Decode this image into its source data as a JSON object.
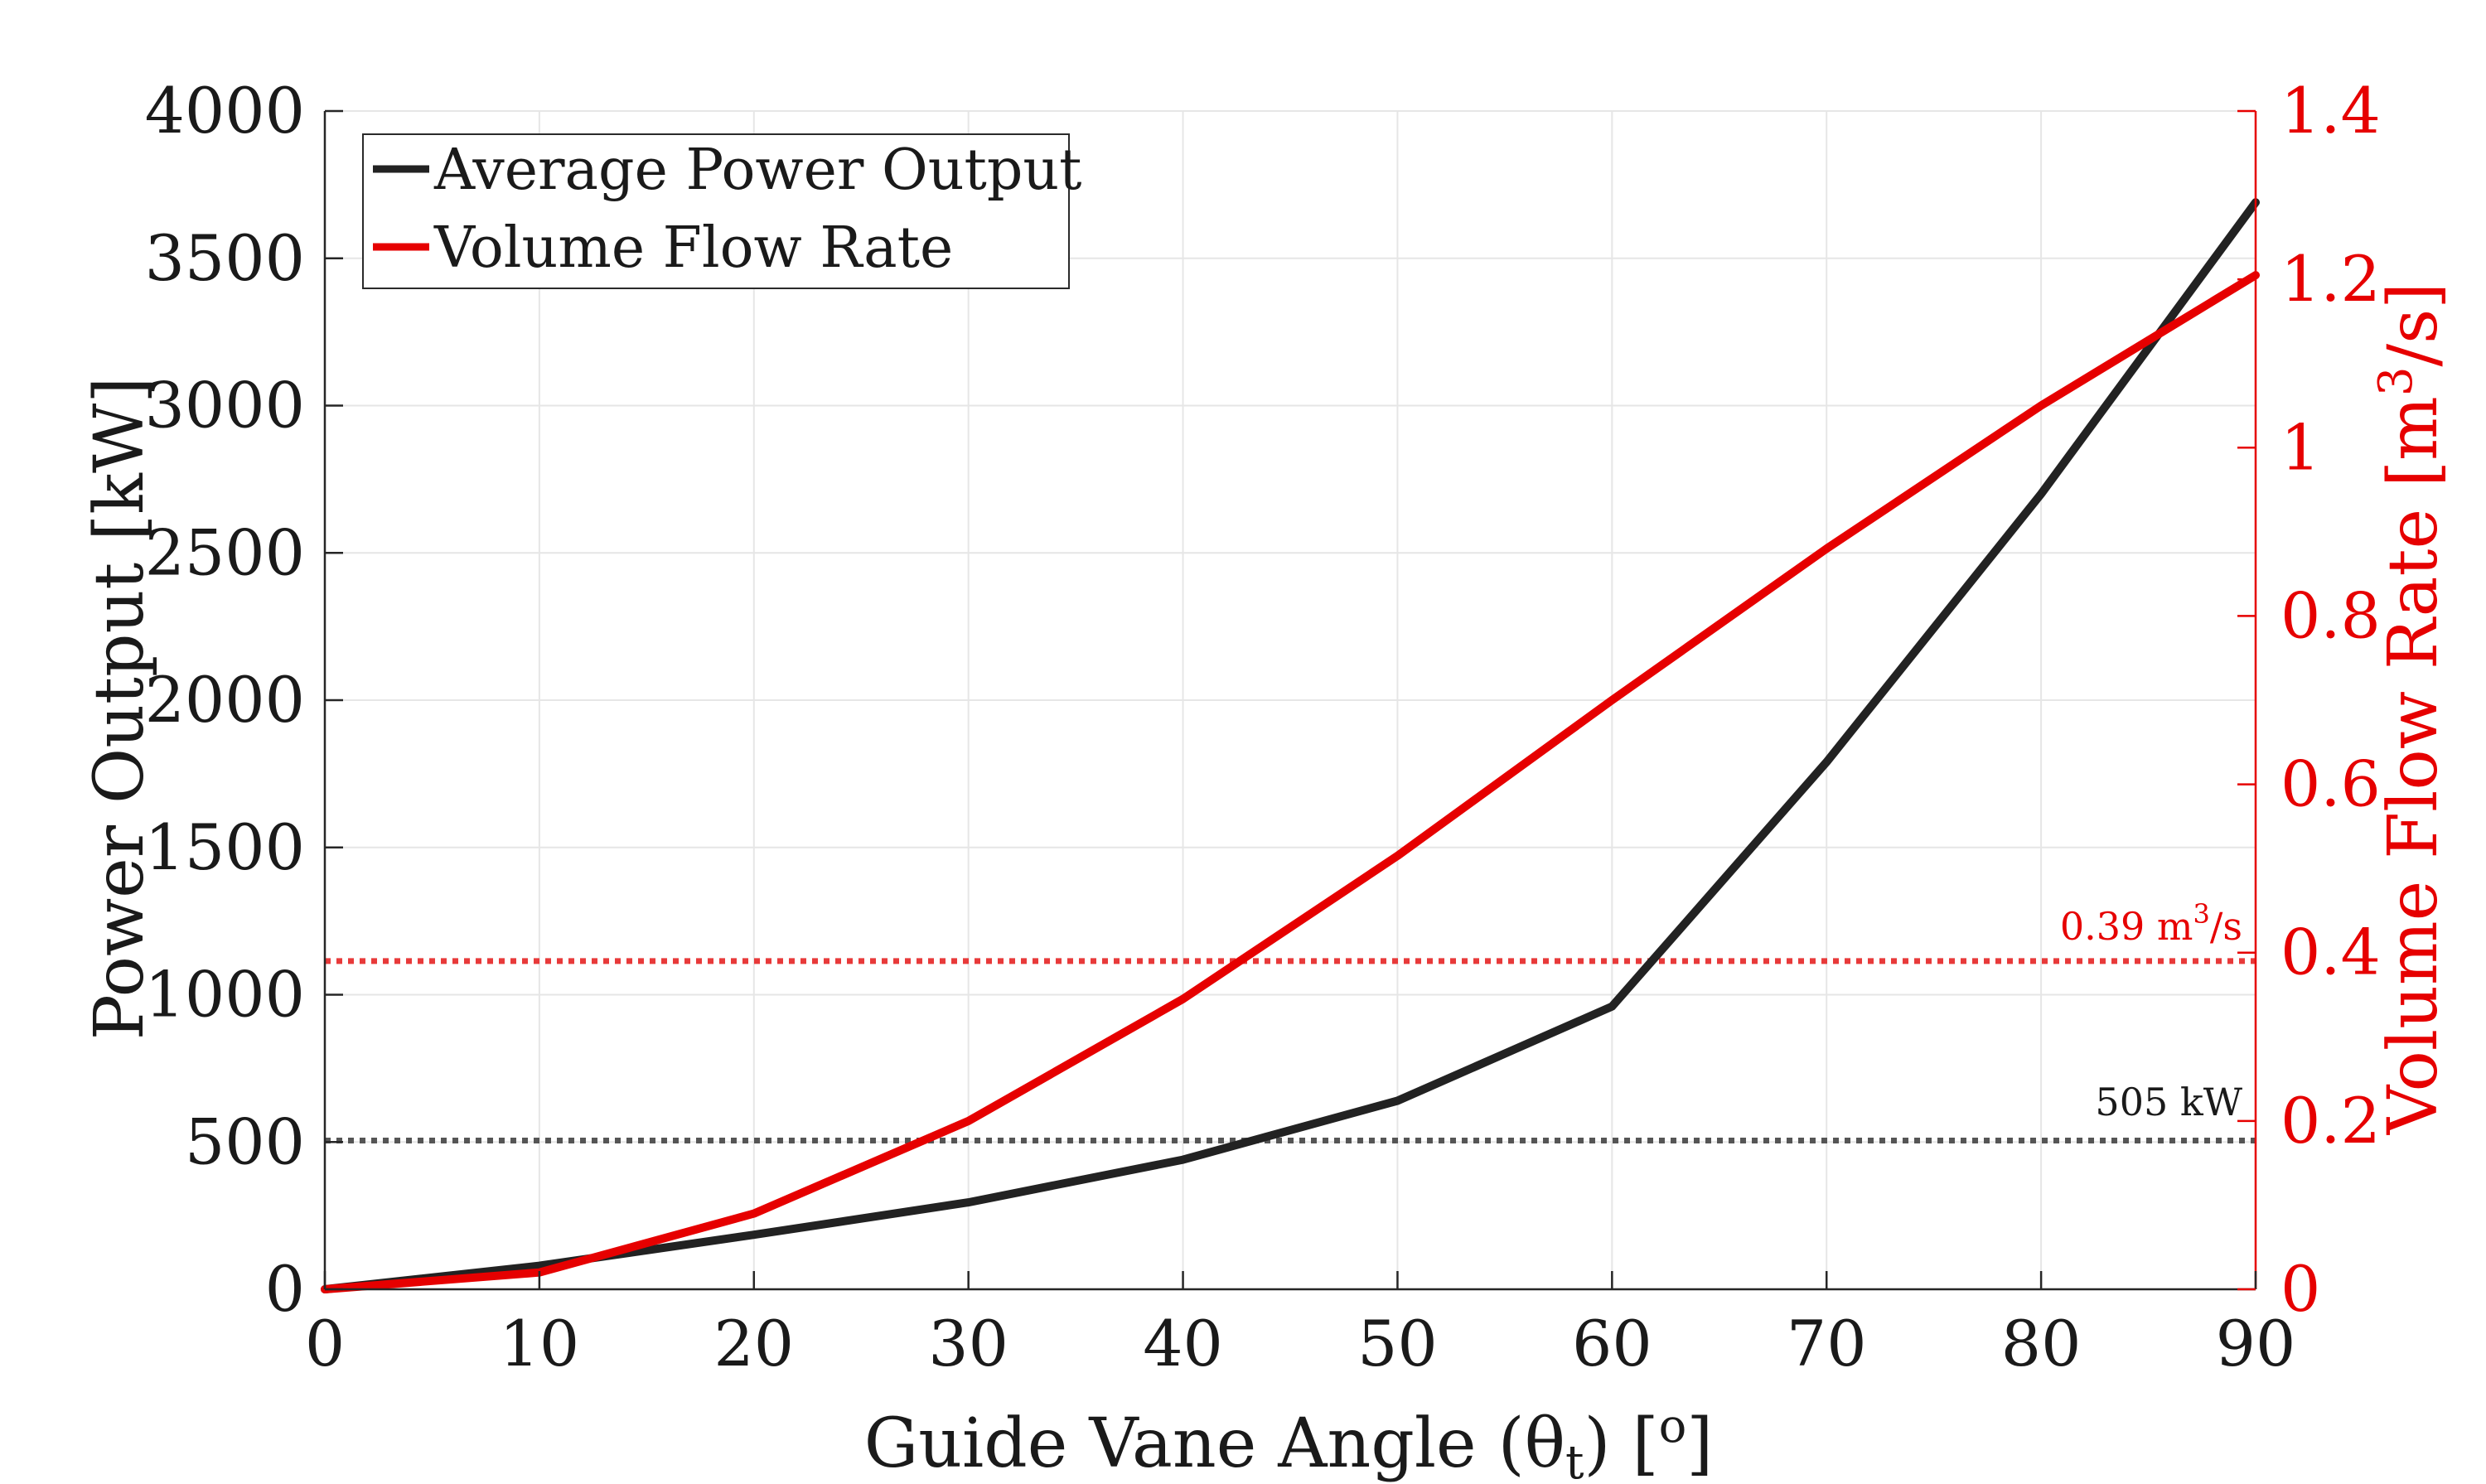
{
  "chart_data": {
    "type": "line",
    "xlabel": "Guide Vane Angle (θ",
    "xlabel_sub": "t",
    "xlabel_unit": ") [",
    "xlabel_unit_sup": "o",
    "xlabel_end": "]",
    "ylabel_left": "Power Output [kW]",
    "ylabel_right": "Volume Flow Rate [m",
    "ylabel_right_sup": "3",
    "ylabel_right_end": "/s]",
    "xlim": [
      0,
      90
    ],
    "ylim_left": [
      0,
      4000
    ],
    "ylim_right": [
      0,
      1.4
    ],
    "x_ticks": [
      0,
      10,
      20,
      30,
      40,
      50,
      60,
      70,
      80,
      90
    ],
    "x_tick_labels": [
      "0",
      "10",
      "20",
      "30",
      "40",
      "50",
      "60",
      "70",
      "80",
      "90"
    ],
    "y_left_ticks": [
      0,
      500,
      1000,
      1500,
      2000,
      2500,
      3000,
      3500,
      4000
    ],
    "y_left_tick_labels": [
      "0",
      "500",
      "1000",
      "1500",
      "2000",
      "2500",
      "3000",
      "3500",
      "4000"
    ],
    "y_right_ticks": [
      0,
      0.2,
      0.4,
      0.6,
      0.8,
      1.0,
      1.2,
      1.4
    ],
    "y_right_tick_labels": [
      "0",
      "0.2",
      "0.4",
      "0.6",
      "0.8",
      "1",
      "1.2",
      "1.4"
    ],
    "grid": true,
    "legend_position": "top-left",
    "x": [
      0,
      10,
      20,
      30,
      40,
      50,
      60,
      70,
      80,
      90
    ],
    "series": [
      {
        "name": "Average Power Output",
        "axis": "left",
        "color": "#222222",
        "values": [
          0,
          80,
          185,
          295,
          440,
          640,
          960,
          1790,
          2700,
          3690
        ]
      },
      {
        "name": "Volume Flow Rate",
        "axis": "right",
        "color": "#e60000",
        "values": [
          0,
          0.02,
          0.09,
          0.2,
          0.345,
          0.515,
          0.7,
          0.88,
          1.05,
          1.205
        ]
      }
    ],
    "reference_lines": [
      {
        "axis": "left",
        "value": 505,
        "label": "505 kW",
        "color": "#555555"
      },
      {
        "axis": "right",
        "value": 0.39,
        "label": "0.39 m",
        "label_sup": "3",
        "label_end": "/s",
        "color": "#e83a3a"
      }
    ],
    "colors": {
      "left_axis": "#1a1a1a",
      "right_axis": "#e60000",
      "grid": "#e6e6e6"
    }
  }
}
